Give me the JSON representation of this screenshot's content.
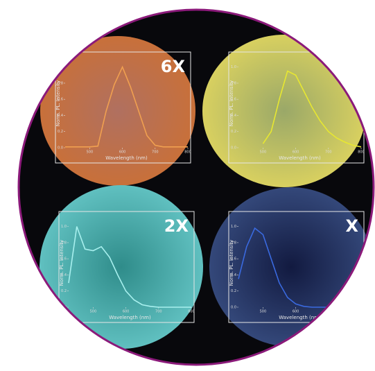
{
  "chart_data": [
    {
      "type": "line",
      "annotation": "6X",
      "x_label": "Wavelength (nm)",
      "y_label": "Norm. PL. Intensity",
      "color": "#f0a050",
      "x": [
        425,
        450,
        475,
        500,
        525,
        550,
        575,
        600,
        625,
        650,
        675,
        700,
        725,
        750,
        775,
        800
      ],
      "values": [
        0.01,
        0.01,
        0.01,
        0.01,
        0.02,
        0.45,
        0.78,
        1.0,
        0.75,
        0.45,
        0.15,
        0.03,
        0.01,
        0.01,
        0.01,
        0.01
      ],
      "xlim": [
        425,
        800
      ],
      "ylim": [
        0,
        1.1
      ],
      "xticks": [
        500,
        600,
        700,
        800
      ],
      "yticks": [
        {
          "value": 0,
          "label": "0.0"
        },
        {
          "value": 0.2,
          "label": "0.2"
        },
        {
          "value": 0.4,
          "label": "0.4"
        },
        {
          "value": 0.6,
          "label": "0.6"
        },
        {
          "value": 0.8,
          "label": "0.8"
        }
      ]
    },
    {
      "type": "line",
      "annotation": "",
      "x_label": "Wavelength (nm)",
      "y_label": "Norm. PL. Intensity",
      "color": "#e8e830",
      "x": [
        425,
        450,
        475,
        500,
        525,
        550,
        575,
        600,
        625,
        650,
        675,
        700,
        725,
        750,
        775,
        800
      ],
      "values": [
        null,
        null,
        null,
        0.05,
        0.2,
        0.6,
        0.95,
        0.9,
        0.7,
        0.5,
        0.33,
        0.2,
        0.12,
        0.07,
        0.03,
        0.01
      ],
      "xlim": [
        425,
        800
      ],
      "ylim": [
        0,
        1.1
      ],
      "xticks": [
        500,
        600,
        700,
        800
      ],
      "yticks": [
        {
          "value": 0,
          "label": "0.0"
        },
        {
          "value": 0.2,
          "label": "0.2"
        },
        {
          "value": 0.4,
          "label": "0.4"
        },
        {
          "value": 0.6,
          "label": "0.6"
        },
        {
          "value": 0.8,
          "label": "0.8"
        },
        {
          "value": 1,
          "label": "1.0"
        }
      ]
    },
    {
      "type": "line",
      "annotation": "2X",
      "x_label": "Wavelength (nm)",
      "y_label": "Norm. PL. Intensity",
      "color": "#a8f0ee",
      "x": [
        425,
        450,
        475,
        500,
        525,
        550,
        575,
        600,
        625,
        650,
        675,
        700,
        725,
        750,
        775,
        800
      ],
      "values": [
        0.3,
        1.0,
        0.72,
        0.7,
        0.75,
        0.62,
        0.4,
        0.2,
        0.09,
        0.03,
        0.01,
        0,
        0,
        0,
        0,
        0
      ],
      "xlim": [
        425,
        800
      ],
      "ylim": [
        0,
        1.1
      ],
      "xticks": [
        500,
        600,
        700,
        800
      ],
      "yticks": [
        {
          "value": 0,
          "label": "0.0"
        },
        {
          "value": 0.2,
          "label": "0.2"
        },
        {
          "value": 0.4,
          "label": "0.4"
        },
        {
          "value": 0.6,
          "label": "0.6"
        },
        {
          "value": 0.8,
          "label": "0.8"
        },
        {
          "value": 1,
          "label": "1.0"
        }
      ]
    },
    {
      "type": "line",
      "annotation": "X",
      "x_label": "Wavelength (nm)",
      "y_label": "Norm. PL. Intensity",
      "color": "#3a6ae0",
      "x": [
        425,
        450,
        475,
        500,
        525,
        550,
        575,
        600,
        625,
        650,
        675,
        700,
        725,
        750,
        775,
        800
      ],
      "values": [
        0.35,
        0.75,
        0.98,
        0.9,
        0.6,
        0.3,
        0.12,
        0.04,
        0.01,
        0,
        0,
        0,
        0,
        0,
        0,
        0
      ],
      "xlim": [
        425,
        800
      ],
      "ylim": [
        0,
        1.1
      ],
      "xticks": [
        500,
        600,
        700,
        800
      ],
      "yticks": [
        {
          "value": 0,
          "label": "0.0"
        },
        {
          "value": 0.2,
          "label": "0.2"
        },
        {
          "value": 0.4,
          "label": "0.4"
        },
        {
          "value": 0.6,
          "label": "0.6"
        },
        {
          "value": 0.8,
          "label": "0.8"
        },
        {
          "value": 1,
          "label": "1.0"
        }
      ]
    }
  ]
}
